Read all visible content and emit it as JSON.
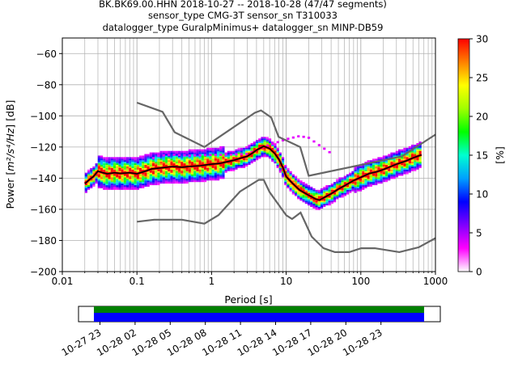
{
  "chart_data": {
    "type": "heatmap",
    "title_lines": [
      "BK.BK69.00.HHN   2018-10-27 -- 2018-10-28  (47/47 segments)",
      "sensor_type CMG-3T sensor_sn T310033",
      "datalogger_type GuralpMinimus+ datalogger_sn MINP-DB59"
    ],
    "xlabel": "Period [s]",
    "ylabel_prefix": "Power [",
    "ylabel_unit": "m²/s⁴/Hz",
    "ylabel_suffix": "] [dB]",
    "x_scale": "log",
    "xlim": [
      0.01,
      1000
    ],
    "ylim": [
      -200,
      -50
    ],
    "x_tick_values": [
      0.01,
      0.1,
      1,
      10,
      100,
      1000
    ],
    "x_tick_labels": [
      "0.01",
      "0.1",
      "1",
      "10",
      "100",
      "1000"
    ],
    "y_tick_values": [
      -200,
      -180,
      -160,
      -140,
      -120,
      -100,
      -80,
      -60
    ],
    "y_tick_labels": [
      "−200",
      "−180",
      "−160",
      "−140",
      "−120",
      "−100",
      "−80",
      "−60"
    ],
    "grid": true,
    "colorbar": {
      "label": "[%]",
      "range": [
        0,
        30
      ],
      "tick_values": [
        0,
        5,
        10,
        15,
        20,
        25,
        30
      ],
      "tick_labels": [
        "0",
        "5",
        "10",
        "15",
        "20",
        "25",
        "30"
      ],
      "colormap": [
        "#ffffff",
        "#ff00ff",
        "#7f00ff",
        "#0000ff",
        "#00a0ff",
        "#00ffd0",
        "#00ff00",
        "#a0ff00",
        "#ffff00",
        "#ff8000",
        "#ff0000"
      ]
    },
    "noise_models": {
      "color": "#666666",
      "high": {
        "period": [
          0.1,
          0.22,
          0.32,
          0.8,
          3.8,
          4.6,
          6.3,
          7.9,
          15.4,
          20,
          354.8,
          1000
        ],
        "db": [
          -91.5,
          -97.4,
          -110.5,
          -120,
          -98,
          -96.5,
          -101,
          -113.5,
          -120,
          -138.5,
          -126,
          -112
        ]
      },
      "low": {
        "period": [
          0.1,
          0.17,
          0.4,
          0.8,
          1.24,
          2.4,
          4.3,
          5,
          6,
          10,
          12,
          15.6,
          21.9,
          31.6,
          45,
          70,
          101,
          154,
          328,
          600,
          1000
        ],
        "db": [
          -168,
          -166.7,
          -166.7,
          -169.2,
          -163.7,
          -148.6,
          -141.1,
          -141.1,
          -149,
          -163.8,
          -166.2,
          -162.1,
          -177.5,
          -185,
          -187.5,
          -187.5,
          -185,
          -185,
          -187.5,
          -184.4,
          -178.5
        ]
      }
    },
    "mean_curve": {
      "color": "#000000",
      "period": [
        0.02,
        0.023,
        0.026,
        0.03,
        0.035,
        0.04,
        0.05,
        0.06,
        0.08,
        0.1,
        0.13,
        0.16,
        0.2,
        0.3,
        0.4,
        0.5,
        0.7,
        1,
        1.3,
        1.6,
        2,
        2.5,
        3,
        3.5,
        4,
        5,
        6,
        7,
        8,
        9,
        10,
        12,
        15,
        20,
        25,
        28,
        32,
        40,
        50,
        60,
        80,
        100,
        130,
        160,
        200,
        300,
        400,
        500,
        650
      ],
      "db": [
        -143.5,
        -141,
        -139,
        -135.5,
        -136.5,
        -137.2,
        -136.5,
        -137,
        -136.5,
        -137.2,
        -135.5,
        -134,
        -133.5,
        -132.5,
        -133,
        -132.5,
        -132,
        -131,
        -130.5,
        -129.5,
        -128.5,
        -127,
        -126,
        -124,
        -122,
        -119.5,
        -121,
        -124,
        -128,
        -133,
        -139,
        -143,
        -147.5,
        -151,
        -153.5,
        -154,
        -152.5,
        -150,
        -147,
        -145,
        -141.5,
        -139.5,
        -137,
        -136,
        -134.5,
        -131,
        -129,
        -127,
        -125
      ]
    },
    "pdf_bins": {
      "period_min": 0.02,
      "period_max": 650,
      "core_ridge_color": "#ff0000",
      "upper_branch": {
        "period": [
          0.15,
          0.2,
          0.3,
          0.5,
          3,
          5,
          10,
          15,
          20,
          30,
          40
        ],
        "db": [
          -128,
          -125.5,
          -125,
          -125.5,
          -124.5,
          -120,
          -115,
          -113,
          -114,
          -120,
          -124
        ]
      }
    }
  },
  "timeline": {
    "start": "2018-10-27 22:00",
    "end": "2018-10-29 01:30",
    "data_start": "2018-10-28 00:00",
    "data_end": "2018-10-29 00:00",
    "tick_labels": [
      "10-27 23",
      "10-28 02",
      "10-28 05",
      "10-28 08",
      "10-28 11",
      "10-28 14",
      "10-28 17",
      "10-28 20",
      "10-28 23"
    ],
    "upper_band_color": "#008000",
    "lower_band_color": "#0000ff"
  }
}
